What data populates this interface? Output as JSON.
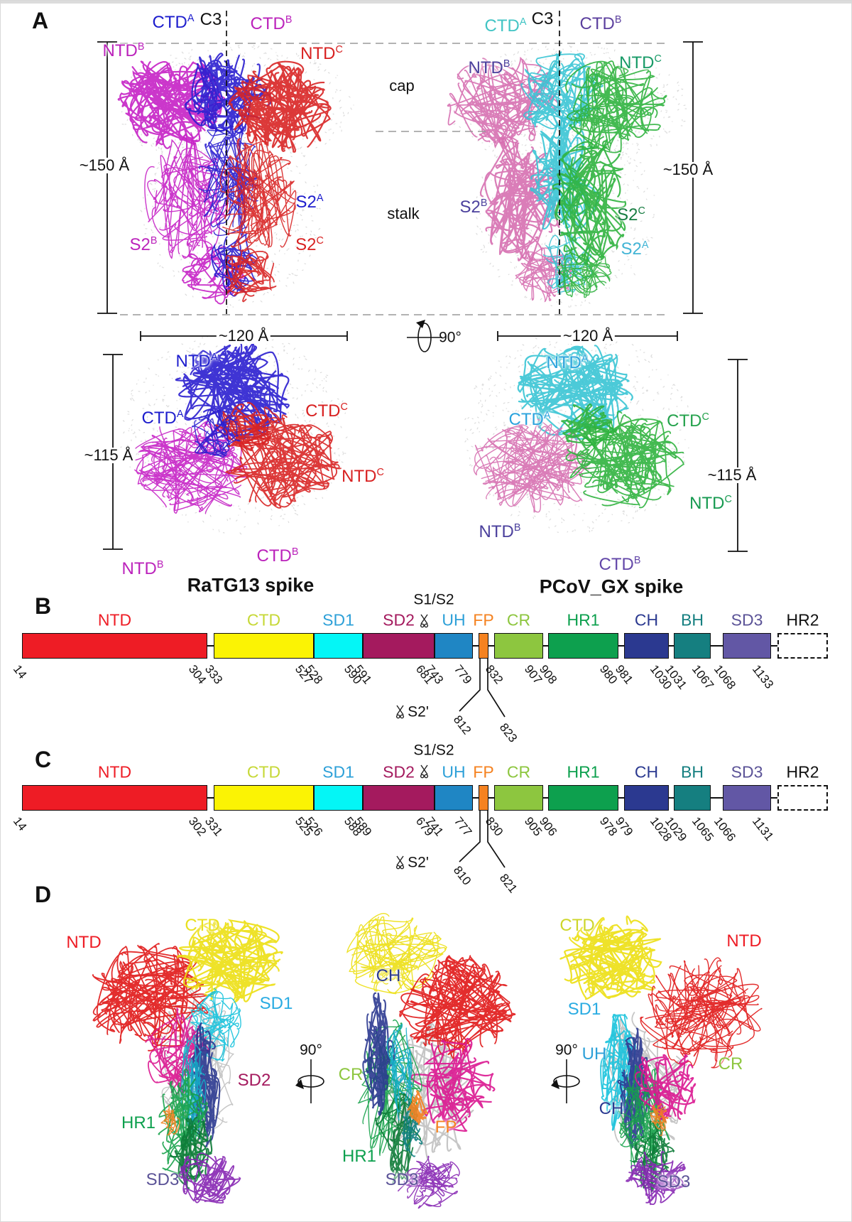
{
  "panelA": {
    "label": "A",
    "c3": "C3",
    "cap": "cap",
    "stalk": "stalk",
    "rotation": "90°",
    "left": {
      "title": "RaTG13 spike",
      "height": "~150 Å",
      "width": "~120 Å",
      "top_height": "~115 Å",
      "side": {
        "ctdA": {
          "base": "CTD",
          "sup": "A",
          "color": "#1c1ccd"
        },
        "ctdB": {
          "base": "CTD",
          "sup": "B",
          "color": "#bb22bb"
        },
        "ntdB": {
          "base": "NTD",
          "sup": "B",
          "color": "#bb22bb"
        },
        "ntdC": {
          "base": "NTD",
          "sup": "C",
          "color": "#d82020"
        },
        "s2A": {
          "base": "S2",
          "sup": "A",
          "color": "#1c1ccd"
        },
        "s2B": {
          "base": "S2",
          "sup": "B",
          "color": "#bb22bb"
        },
        "s2C": {
          "base": "S2",
          "sup": "C",
          "color": "#d82020"
        }
      },
      "top": {
        "ntdA": {
          "base": "NTD",
          "sup": "A",
          "color": "#1c1ccd"
        },
        "ctdA": {
          "base": "CTD",
          "sup": "A",
          "color": "#1c1ccd"
        },
        "ctdC": {
          "base": "CTD",
          "sup": "C",
          "color": "#d82020"
        },
        "ntdC": {
          "base": "NTD",
          "sup": "C",
          "color": "#d82020"
        },
        "ntdB": {
          "base": "NTD",
          "sup": "B",
          "color": "#bb22bb"
        },
        "ctdB": {
          "base": "CTD",
          "sup": "B",
          "color": "#bb22bb"
        }
      }
    },
    "right": {
      "title": "PCoV_GX spike",
      "height": "~150 Å",
      "width": "~120 Å",
      "top_height": "~115 Å",
      "side": {
        "ctdA": {
          "base": "CTD",
          "sup": "A",
          "color": "#41c4c4"
        },
        "ctdB": {
          "base": "CTD",
          "sup": "B",
          "color": "#5b3f9e"
        },
        "ntdB": {
          "base": "NTD",
          "sup": "B",
          "color": "#4a3f9c"
        },
        "ntdC": {
          "base": "NTD",
          "sup": "C",
          "color": "#169a66"
        },
        "s2A": {
          "base": "S2",
          "sup": "A",
          "color": "#42b4d5"
        },
        "s2B": {
          "base": "S2",
          "sup": "B",
          "color": "#4a3f9c"
        },
        "s2C": {
          "base": "S2",
          "sup": "C",
          "color": "#157c40"
        }
      },
      "top": {
        "ntdA": {
          "base": "NTD",
          "sup": "A",
          "color": "#2ba3dd"
        },
        "ctdA": {
          "base": "CTD",
          "sup": "A",
          "color": "#2ba3dd"
        },
        "ctdC": {
          "base": "CTD",
          "sup": "C",
          "color": "#24a24c"
        },
        "ntdC": {
          "base": "NTD",
          "sup": "C",
          "color": "#169a50"
        },
        "ntdB": {
          "base": "NTD",
          "sup": "B",
          "color": "#4a3f9c"
        },
        "ctdB": {
          "base": "CTD",
          "sup": "B",
          "color": "#6246a8"
        }
      }
    }
  },
  "panelB": {
    "label": "B",
    "s1s2": "S1/S2",
    "s2prime": "S2'",
    "s2prime_start": "812",
    "s2prime_end": "823",
    "domains": [
      {
        "name": "NTD",
        "bar": "#ee1c25",
        "label": "#ee1c25",
        "start": "14",
        "end": "304"
      },
      {
        "name": "CTD",
        "bar": "#fbf304",
        "label": "#c6d836",
        "start": "333",
        "end": "527"
      },
      {
        "name": "SD1",
        "bar": "#04f6f6",
        "label": "#2da0d8",
        "start": "528",
        "end": "590"
      },
      {
        "name": "SD2",
        "bar": "#a41a5e",
        "label": "#a41a5e",
        "start": "591",
        "end": "681"
      },
      {
        "name": "UH",
        "bar": "#1f86c4",
        "label": "#2da0d8",
        "start": "743",
        "end": "779"
      },
      {
        "name": "FP",
        "bar": "#f58220",
        "label": "#f58220",
        "start": "",
        "end": ""
      },
      {
        "name": "CR",
        "bar": "#8dc63f",
        "label": "#8dc63f",
        "start": "832",
        "end": "907"
      },
      {
        "name": "HR1",
        "bar": "#0da04e",
        "label": "#0da04e",
        "start": "908",
        "end": "980"
      },
      {
        "name": "CH",
        "bar": "#2b3990",
        "label": "#2b3990",
        "start": "981",
        "end": "1030"
      },
      {
        "name": "BH",
        "bar": "#157f80",
        "label": "#157f80",
        "start": "1031",
        "end": "1067"
      },
      {
        "name": "SD3",
        "bar": "#6257a5",
        "label": "#5b5397",
        "start": "1068",
        "end": "1133"
      },
      {
        "name": "HR2",
        "bar": "dashed",
        "label": "#111111",
        "start": "",
        "end": ""
      }
    ]
  },
  "panelC": {
    "label": "C",
    "s1s2": "S1/S2",
    "s2prime": "S2'",
    "s2prime_start": "810",
    "s2prime_end": "821",
    "domains": [
      {
        "name": "NTD",
        "bar": "#ee1c25",
        "label": "#ee1c25",
        "start": "14",
        "end": "302"
      },
      {
        "name": "CTD",
        "bar": "#fbf304",
        "label": "#c6d836",
        "start": "331",
        "end": "525"
      },
      {
        "name": "SD1",
        "bar": "#04f6f6",
        "label": "#2da0d8",
        "start": "526",
        "end": "588"
      },
      {
        "name": "SD2",
        "bar": "#a41a5e",
        "label": "#a41a5e",
        "start": "589",
        "end": "679"
      },
      {
        "name": "UH",
        "bar": "#1f86c4",
        "label": "#2da0d8",
        "start": "741",
        "end": "777"
      },
      {
        "name": "FP",
        "bar": "#f58220",
        "label": "#f58220",
        "start": "",
        "end": ""
      },
      {
        "name": "CR",
        "bar": "#8dc63f",
        "label": "#8dc63f",
        "start": "830",
        "end": "905"
      },
      {
        "name": "HR1",
        "bar": "#0da04e",
        "label": "#0da04e",
        "start": "906",
        "end": "978"
      },
      {
        "name": "CH",
        "bar": "#2b3990",
        "label": "#2b3990",
        "start": "979",
        "end": "1028"
      },
      {
        "name": "BH",
        "bar": "#157f80",
        "label": "#157f80",
        "start": "1029",
        "end": "1065"
      },
      {
        "name": "SD3",
        "bar": "#6257a5",
        "label": "#5b5397",
        "start": "1066",
        "end": "1131"
      },
      {
        "name": "HR2",
        "bar": "dashed",
        "label": "#111111",
        "start": "",
        "end": ""
      }
    ]
  },
  "panelD": {
    "label": "D",
    "rotation1": "90°",
    "rotation2": "90°",
    "view1": {
      "ntd": {
        "text": "NTD",
        "color": "#ee1c25"
      },
      "ctd": {
        "text": "CTD",
        "color": "#e8e01e"
      },
      "sd1": {
        "text": "SD1",
        "color": "#29abe2"
      },
      "sd2": {
        "text": "SD2",
        "color": "#a41a5e"
      },
      "hr1": {
        "text": "HR1",
        "color": "#0da04e"
      },
      "sd3": {
        "text": "SD3",
        "color": "#5b5397"
      }
    },
    "view2": {
      "ch": {
        "text": "CH",
        "color": "#2b3990"
      },
      "cr": {
        "text": "CR",
        "color": "#8dc63f"
      },
      "fp": {
        "text": "FP",
        "color": "#f58220"
      },
      "hr1": {
        "text": "HR1",
        "color": "#0da04e"
      },
      "sd3": {
        "text": "SD3",
        "color": "#5b5397"
      }
    },
    "view3": {
      "ctd": {
        "text": "CTD",
        "color": "#cdd62a"
      },
      "ntd": {
        "text": "NTD",
        "color": "#ee1c25"
      },
      "sd1": {
        "text": "SD1",
        "color": "#29abe2"
      },
      "uh": {
        "text": "UH",
        "color": "#2da0d8"
      },
      "ch": {
        "text": "CH",
        "color": "#2b3990"
      },
      "cr": {
        "text": "CR",
        "color": "#8dc63f"
      },
      "sd3": {
        "text": "SD3",
        "color": "#5b5397"
      }
    }
  }
}
